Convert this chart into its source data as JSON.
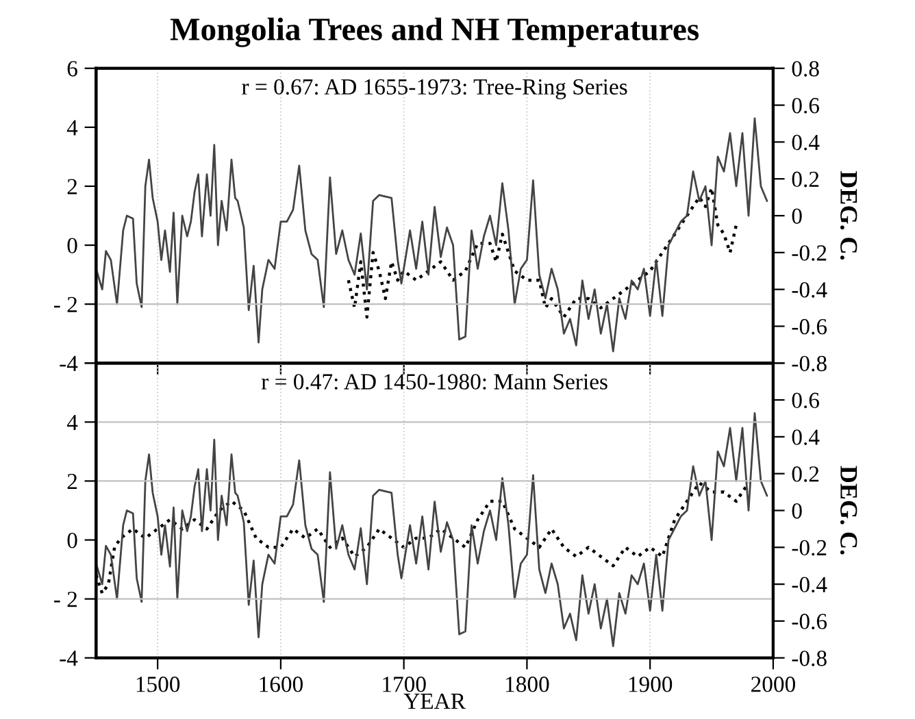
{
  "chart_data": [
    {
      "type": "line",
      "title": "Mongolia Trees and NH Temperatures",
      "y2label": "DEG. C.",
      "annotations": [
        "r = 0.67: AD 1655-1973: Tree-Ring Series"
      ],
      "xlim": [
        1450,
        2000
      ],
      "xticks": [
        1500,
        1600,
        1700,
        1800,
        1900,
        2000
      ],
      "tick_labels": "y",
      "ylim": [
        -4,
        6
      ],
      "yticks": [
        {
          "value": -4,
          "label": "-4"
        },
        {
          "value": -2,
          "label": "- 2"
        },
        0,
        2,
        4,
        6
      ],
      "y2lim": [
        -0.8,
        0.8
      ],
      "y2ticks": [
        -0.8,
        -0.6,
        -0.4,
        -0.2,
        0,
        0.2,
        0.4,
        0.6,
        0.8
      ],
      "grid": "x",
      "ref_lines": [
        {
          "axis": "y",
          "value": -2,
          "color": "#c0c0c0"
        }
      ],
      "series": [
        {
          "color": "#444444",
          "line_style": "solid",
          "axis": "y",
          "x": [
            1450,
            1455,
            1458,
            1462,
            1467,
            1472,
            1475,
            1480,
            1483,
            1487,
            1490,
            1493,
            1496,
            1500,
            1503,
            1506,
            1510,
            1513,
            1516,
            1520,
            1524,
            1527,
            1530,
            1533,
            1536,
            1540,
            1543,
            1546,
            1549,
            1552,
            1556,
            1560,
            1563,
            1565,
            1570,
            1574,
            1578,
            1582,
            1585,
            1590,
            1595,
            1600,
            1605,
            1610,
            1615,
            1620,
            1625,
            1630,
            1635,
            1640,
            1645,
            1650,
            1655,
            1660,
            1665,
            1670,
            1675,
            1680,
            1690,
            1695,
            1698,
            1705,
            1710,
            1715,
            1720,
            1725,
            1730,
            1735,
            1740,
            1745,
            1750,
            1755,
            1760,
            1765,
            1770,
            1775,
            1780,
            1785,
            1790,
            1795,
            1800,
            1805,
            1810,
            1815,
            1820,
            1825,
            1830,
            1835,
            1840,
            1845,
            1850,
            1855,
            1860,
            1865,
            1870,
            1875,
            1880,
            1885,
            1890,
            1895,
            1900,
            1905,
            1910,
            1915,
            1920,
            1925,
            1930,
            1935,
            1940,
            1945,
            1950,
            1955,
            1960,
            1965,
            1970,
            1975,
            1980,
            1985,
            1990,
            1995
          ],
          "values": [
            -0.8,
            -1.5,
            -0.2,
            -0.5,
            -2.0,
            0.5,
            1.0,
            0.9,
            -1.3,
            -2.1,
            2.0,
            2.9,
            1.6,
            0.8,
            -0.5,
            0.5,
            -0.9,
            1.1,
            -2.0,
            1.0,
            0.3,
            0.8,
            1.8,
            2.4,
            0.3,
            2.4,
            1.0,
            3.4,
            0.0,
            1.5,
            0.5,
            2.9,
            1.6,
            1.5,
            0.6,
            -2.2,
            -0.7,
            -3.3,
            -1.5,
            -0.5,
            -0.8,
            0.8,
            0.8,
            1.2,
            2.7,
            0.5,
            -0.3,
            -0.5,
            -2.1,
            2.3,
            -0.3,
            0.5,
            -0.5,
            -1.0,
            0.4,
            -1.5,
            1.5,
            1.7,
            1.6,
            -0.5,
            -1.3,
            0.5,
            -0.8,
            0.8,
            -1.0,
            1.3,
            -0.4,
            0.6,
            0.0,
            -3.2,
            -3.1,
            0.5,
            -0.8,
            0.3,
            1.0,
            0.0,
            2.1,
            0.5,
            -2.0,
            -0.8,
            -0.5,
            2.2,
            -1.0,
            -1.8,
            -0.8,
            -1.5,
            -3.0,
            -2.5,
            -3.4,
            -1.2,
            -2.5,
            -1.5,
            -3.0,
            -2.0,
            -3.6,
            -1.8,
            -2.5,
            -1.2,
            -1.5,
            -0.8,
            -2.4,
            -0.5,
            -2.4,
            0.0,
            0.4,
            0.8,
            1.0,
            2.5,
            1.5,
            2.0,
            0.0,
            3.0,
            2.5,
            3.8,
            2.0,
            3.8,
            1.0,
            4.3,
            2.0,
            1.5
          ]
        },
        {
          "color": "#000000",
          "line_style": "dotted",
          "axis": "y2",
          "x": [
            1655,
            1660,
            1665,
            1670,
            1675,
            1680,
            1685,
            1690,
            1695,
            1700,
            1710,
            1720,
            1730,
            1740,
            1750,
            1760,
            1770,
            1775,
            1780,
            1790,
            1800,
            1810,
            1815,
            1820,
            1830,
            1840,
            1850,
            1860,
            1870,
            1880,
            1890,
            1900,
            1910,
            1920,
            1930,
            1940,
            1945,
            1950,
            1955,
            1960,
            1965,
            1970,
            1973
          ],
          "values": [
            -0.35,
            -0.5,
            -0.25,
            -0.55,
            -0.2,
            -0.3,
            -0.45,
            -0.25,
            -0.35,
            -0.3,
            -0.35,
            -0.3,
            -0.25,
            -0.35,
            -0.3,
            -0.15,
            -0.15,
            -0.25,
            -0.1,
            -0.3,
            -0.35,
            -0.35,
            -0.5,
            -0.45,
            -0.55,
            -0.45,
            -0.45,
            -0.5,
            -0.45,
            -0.4,
            -0.35,
            -0.3,
            -0.2,
            -0.1,
            0.0,
            0.1,
            0.05,
            0.15,
            -0.05,
            -0.1,
            -0.2,
            -0.05,
            -0.05
          ]
        }
      ]
    },
    {
      "type": "line",
      "xlabel": "YEAR",
      "y2label": "DEG. C.",
      "annotations": [
        "r = 0.47: AD 1450-1980: Mann Series"
      ],
      "xlim": [
        1450,
        2000
      ],
      "xticks": [
        1500,
        1600,
        1700,
        1800,
        1900,
        2000
      ],
      "ylim": [
        -4,
        6
      ],
      "yticks": [
        {
          "value": -4,
          "label": "-4"
        },
        {
          "value": -2,
          "label": "- 2"
        },
        0,
        2,
        4,
        {
          "value": 6,
          "label": null
        }
      ],
      "y2lim": [
        -0.8,
        0.8
      ],
      "y2ticks": [
        -0.8,
        -0.6,
        -0.4,
        -0.2,
        0,
        0.2,
        0.4,
        0.6,
        {
          "value": 0.8,
          "label": null
        }
      ],
      "grid": "x",
      "ref_lines": [
        {
          "axis": "y",
          "value": 4,
          "color": "#c0c0c0"
        },
        {
          "axis": "y",
          "value": 2,
          "color": "#c0c0c0"
        },
        {
          "axis": "y",
          "value": -2,
          "color": "#c0c0c0"
        }
      ],
      "series": [
        {
          "color": "#444444",
          "line_style": "solid",
          "axis": "y",
          "x": [
            1450,
            1455,
            1458,
            1462,
            1467,
            1472,
            1475,
            1480,
            1483,
            1487,
            1490,
            1493,
            1496,
            1500,
            1503,
            1506,
            1510,
            1513,
            1516,
            1520,
            1524,
            1527,
            1530,
            1533,
            1536,
            1540,
            1543,
            1546,
            1549,
            1552,
            1556,
            1560,
            1563,
            1565,
            1570,
            1574,
            1578,
            1582,
            1585,
            1590,
            1595,
            1600,
            1605,
            1610,
            1615,
            1620,
            1625,
            1630,
            1635,
            1640,
            1645,
            1650,
            1655,
            1660,
            1665,
            1670,
            1675,
            1680,
            1690,
            1695,
            1698,
            1705,
            1710,
            1715,
            1720,
            1725,
            1730,
            1735,
            1740,
            1745,
            1750,
            1755,
            1760,
            1765,
            1770,
            1775,
            1780,
            1785,
            1790,
            1795,
            1800,
            1805,
            1810,
            1815,
            1820,
            1825,
            1830,
            1835,
            1840,
            1845,
            1850,
            1855,
            1860,
            1865,
            1870,
            1875,
            1880,
            1885,
            1890,
            1895,
            1900,
            1905,
            1910,
            1915,
            1920,
            1925,
            1930,
            1935,
            1940,
            1945,
            1950,
            1955,
            1960,
            1965,
            1970,
            1975,
            1980,
            1985,
            1990,
            1995
          ],
          "values": [
            -0.8,
            -1.5,
            -0.2,
            -0.5,
            -2.0,
            0.5,
            1.0,
            0.9,
            -1.3,
            -2.1,
            2.0,
            2.9,
            1.6,
            0.8,
            -0.5,
            0.5,
            -0.9,
            1.1,
            -2.0,
            1.0,
            0.3,
            0.8,
            1.8,
            2.4,
            0.3,
            2.4,
            1.0,
            3.4,
            0.0,
            1.5,
            0.5,
            2.9,
            1.6,
            1.5,
            0.6,
            -2.2,
            -0.7,
            -3.3,
            -1.5,
            -0.5,
            -0.8,
            0.8,
            0.8,
            1.2,
            2.7,
            0.5,
            -0.3,
            -0.5,
            -2.1,
            2.3,
            -0.3,
            0.5,
            -0.5,
            -1.0,
            0.4,
            -1.5,
            1.5,
            1.7,
            1.6,
            -0.5,
            -1.3,
            0.5,
            -0.8,
            0.8,
            -1.0,
            1.3,
            -0.4,
            0.6,
            0.0,
            -3.2,
            -3.1,
            0.5,
            -0.8,
            0.3,
            1.0,
            0.0,
            2.1,
            0.5,
            -2.0,
            -0.8,
            -0.5,
            2.2,
            -1.0,
            -1.8,
            -0.8,
            -1.5,
            -3.0,
            -2.5,
            -3.4,
            -1.2,
            -2.5,
            -1.5,
            -3.0,
            -2.0,
            -3.6,
            -1.8,
            -2.5,
            -1.2,
            -1.5,
            -0.8,
            -2.4,
            -0.5,
            -2.4,
            0.0,
            0.4,
            0.8,
            1.0,
            2.5,
            1.5,
            2.0,
            0.0,
            3.0,
            2.5,
            3.8,
            2.0,
            3.8,
            1.0,
            4.3,
            2.0,
            1.5
          ]
        },
        {
          "color": "#000000",
          "line_style": "dotted",
          "axis": "y2",
          "x": [
            1450,
            1455,
            1460,
            1465,
            1470,
            1480,
            1490,
            1500,
            1510,
            1520,
            1530,
            1540,
            1550,
            1560,
            1570,
            1580,
            1590,
            1600,
            1610,
            1620,
            1630,
            1640,
            1650,
            1660,
            1670,
            1680,
            1690,
            1700,
            1710,
            1720,
            1730,
            1740,
            1750,
            1760,
            1770,
            1780,
            1790,
            1800,
            1810,
            1820,
            1830,
            1840,
            1850,
            1860,
            1870,
            1880,
            1890,
            1900,
            1910,
            1920,
            1930,
            1940,
            1950,
            1960,
            1970,
            1980
          ],
          "values": [
            -0.35,
            -0.45,
            -0.4,
            -0.2,
            -0.15,
            -0.1,
            -0.15,
            -0.1,
            -0.05,
            -0.1,
            -0.05,
            -0.1,
            0.0,
            0.05,
            0.0,
            -0.15,
            -0.2,
            -0.2,
            -0.1,
            -0.15,
            -0.1,
            -0.2,
            -0.15,
            -0.25,
            -0.2,
            -0.1,
            -0.15,
            -0.2,
            -0.15,
            -0.15,
            -0.1,
            -0.15,
            -0.2,
            -0.05,
            0.05,
            0.05,
            -0.1,
            -0.15,
            -0.2,
            -0.1,
            -0.2,
            -0.25,
            -0.2,
            -0.25,
            -0.3,
            -0.2,
            -0.25,
            -0.2,
            -0.25,
            -0.05,
            0.05,
            0.15,
            0.1,
            0.1,
            0.05,
            0.15
          ]
        }
      ]
    }
  ]
}
